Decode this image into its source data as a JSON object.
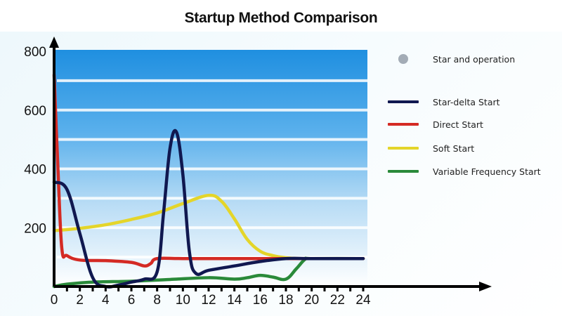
{
  "title": "Startup Method Comparison",
  "colors": {
    "star_delta": "#101850",
    "direct": "#d42a24",
    "soft": "#e4d52a",
    "vfd": "#2a8a3a",
    "marker": "#a3acb6",
    "band_top": "#1e90e0",
    "band_bottom": "#ffffff"
  },
  "legend": {
    "items": [
      {
        "label": "Star and operation",
        "type": "dot"
      },
      {
        "label": "Star-delta Start",
        "type": "line"
      },
      {
        "label": "Direct Start",
        "type": "line"
      },
      {
        "label": "Soft Start",
        "type": "line"
      },
      {
        "label": "Variable Frequency Start",
        "type": "line"
      }
    ]
  },
  "chart_data": {
    "type": "line",
    "title": "Startup Method Comparison",
    "xlabel": "",
    "ylabel": "",
    "xlim": [
      0,
      24
    ],
    "ylim": [
      0,
      800
    ],
    "x_ticks": [
      "0",
      "2",
      "4",
      "6",
      "8",
      "10",
      "12",
      "14",
      "16",
      "18",
      "20",
      "22",
      "24"
    ],
    "y_ticks": [
      "200",
      "400",
      "600",
      "800"
    ],
    "grid": "horizontal bands",
    "legend_position": "right",
    "series": [
      {
        "name": "Star-delta Start",
        "x": [
          0,
          1,
          2,
          3,
          4,
          5,
          6,
          7,
          8,
          8.5,
          9,
          9.5,
          10,
          10.5,
          11,
          12,
          14,
          16,
          18,
          20,
          24
        ],
        "values": [
          355,
          330,
          180,
          30,
          0,
          5,
          15,
          25,
          50,
          250,
          470,
          525,
          380,
          120,
          45,
          55,
          70,
          85,
          95,
          95,
          95
        ]
      },
      {
        "name": "Direct Start",
        "x": [
          0,
          0.3,
          0.6,
          1,
          2,
          4,
          6,
          7,
          7.5,
          8,
          10,
          14,
          18,
          20,
          24
        ],
        "values": [
          720,
          400,
          130,
          105,
          90,
          88,
          82,
          70,
          78,
          95,
          95,
          95,
          95,
          95,
          95
        ]
      },
      {
        "name": "Soft Start",
        "x": [
          0,
          2,
          4,
          6,
          8,
          10,
          12,
          13,
          14,
          15,
          16,
          17,
          18,
          19,
          20,
          24
        ],
        "values": [
          190,
          198,
          210,
          228,
          250,
          282,
          310,
          290,
          230,
          160,
          120,
          105,
          98,
          95,
          95,
          95
        ]
      },
      {
        "name": "Variable Frequency Start",
        "x": [
          0,
          1,
          3,
          6,
          9,
          12,
          14,
          15,
          16,
          17,
          18,
          18.8,
          19.5,
          20,
          24
        ],
        "values": [
          0,
          8,
          15,
          18,
          24,
          30,
          25,
          30,
          38,
          32,
          25,
          60,
          93,
          95,
          95
        ]
      }
    ]
  }
}
